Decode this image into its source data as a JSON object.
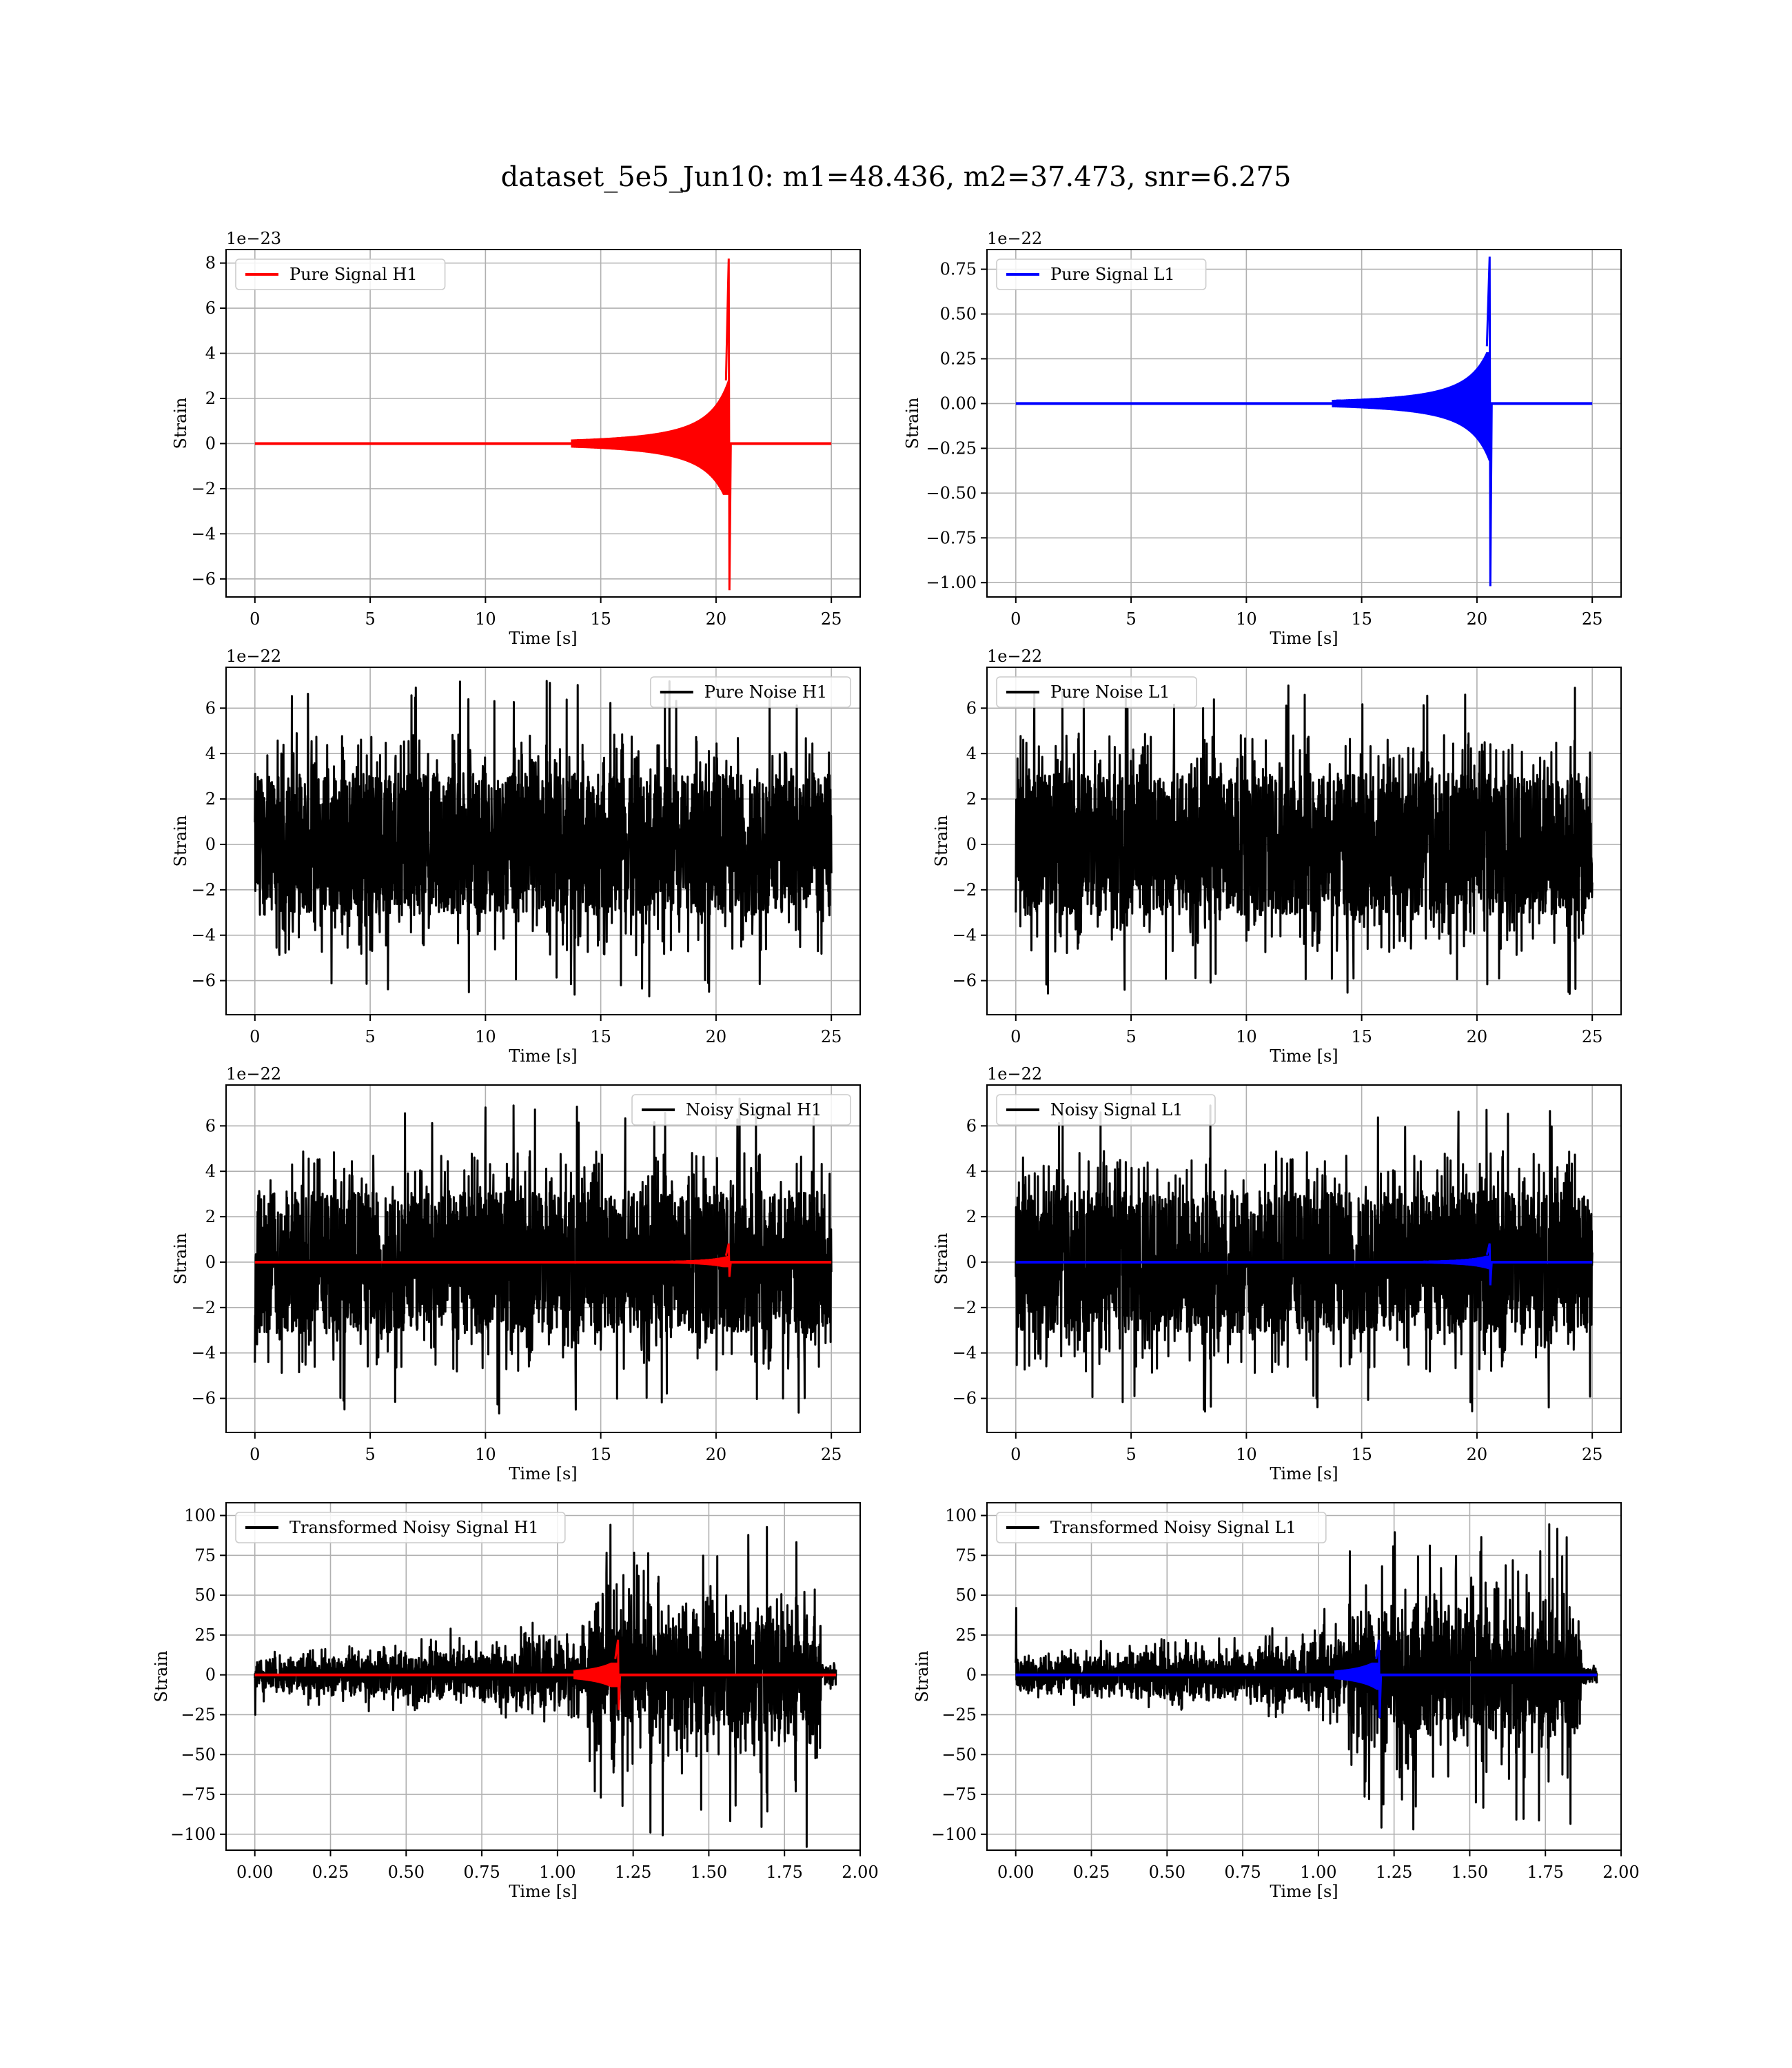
{
  "figure": {
    "suptitle": "dataset_5e5_Jun10: m1=48.436, m2=37.473, snr=6.275"
  },
  "colors": {
    "h1_signal": "#ff0000",
    "l1_signal": "#0000ff",
    "noise": "#000000",
    "grid": "#b0b0b0"
  },
  "chart_data": [
    {
      "type": "line",
      "legend_entries": [
        "Pure Signal H1"
      ],
      "legend_location": "upper-left",
      "xlabel": "Time [s]",
      "ylabel": "Strain",
      "offset_label": "1e−23",
      "xlim": [
        -1.25,
        26.25
      ],
      "ylim": [
        -6.8,
        8.6
      ],
      "xticks": [
        0,
        5,
        10,
        15,
        20,
        25
      ],
      "xtick_labels": [
        "0",
        "5",
        "10",
        "15",
        "20",
        "25"
      ],
      "yticks": [
        -6,
        -4,
        -2,
        0,
        2,
        4,
        6,
        8
      ],
      "ytick_labels": [
        "−6",
        "−4",
        "−2",
        "0",
        "2",
        "4",
        "6",
        "8"
      ],
      "grid": true,
      "series": [
        {
          "kind": "chirp",
          "color": "#ff0000",
          "x_start": 0,
          "x_end": 25,
          "merger_time": 20.55,
          "peak_max": 8.2,
          "peak_min": -6.5,
          "envelope_pre_merger": 2.8
        }
      ]
    },
    {
      "type": "line",
      "legend_entries": [
        "Pure Signal L1"
      ],
      "legend_location": "upper-left",
      "xlabel": "Time [s]",
      "ylabel": "Strain",
      "offset_label": "1e−22",
      "xlim": [
        -1.25,
        26.25
      ],
      "ylim": [
        -1.08,
        0.86
      ],
      "xticks": [
        0,
        5,
        10,
        15,
        20,
        25
      ],
      "xtick_labels": [
        "0",
        "5",
        "10",
        "15",
        "20",
        "25"
      ],
      "yticks": [
        -1.0,
        -0.75,
        -0.5,
        -0.25,
        0.0,
        0.25,
        0.5,
        0.75
      ],
      "ytick_labels": [
        "−1.00",
        "−0.75",
        "−0.50",
        "−0.25",
        "0.00",
        "0.25",
        "0.50",
        "0.75"
      ],
      "grid": true,
      "series": [
        {
          "kind": "chirp",
          "color": "#0000ff",
          "x_start": 0,
          "x_end": 25,
          "merger_time": 20.55,
          "peak_max": 0.82,
          "peak_min": -1.02,
          "envelope_pre_merger": 0.32
        }
      ]
    },
    {
      "type": "line",
      "legend_entries": [
        "Pure Noise H1"
      ],
      "legend_location": "upper-right",
      "xlabel": "Time [s]",
      "ylabel": "Strain",
      "offset_label": "1e−22",
      "xlim": [
        -1.25,
        26.25
      ],
      "ylim": [
        -7.5,
        7.8
      ],
      "xticks": [
        0,
        5,
        10,
        15,
        20,
        25
      ],
      "xtick_labels": [
        "0",
        "5",
        "10",
        "15",
        "20",
        "25"
      ],
      "yticks": [
        -6,
        -4,
        -2,
        0,
        2,
        4,
        6
      ],
      "ytick_labels": [
        "−6",
        "−4",
        "−2",
        "0",
        "2",
        "4",
        "6"
      ],
      "grid": true,
      "series": [
        {
          "kind": "noise",
          "color": "#000000",
          "x_start": 0,
          "x_end": 25,
          "band": 3.3,
          "peak_max": 7.2,
          "peak_min": -6.8
        }
      ]
    },
    {
      "type": "line",
      "legend_entries": [
        "Pure Noise L1"
      ],
      "legend_location": "upper-left",
      "xlabel": "Time [s]",
      "ylabel": "Strain",
      "offset_label": "1e−22",
      "xlim": [
        -1.25,
        26.25
      ],
      "ylim": [
        -7.5,
        7.8
      ],
      "xticks": [
        0,
        5,
        10,
        15,
        20,
        25
      ],
      "xtick_labels": [
        "0",
        "5",
        "10",
        "15",
        "20",
        "25"
      ],
      "yticks": [
        -6,
        -4,
        -2,
        0,
        2,
        4,
        6
      ],
      "ytick_labels": [
        "−6",
        "−4",
        "−2",
        "0",
        "2",
        "4",
        "6"
      ],
      "grid": true,
      "series": [
        {
          "kind": "noise",
          "color": "#000000",
          "x_start": 0,
          "x_end": 25,
          "band": 3.3,
          "peak_max": 7.0,
          "peak_min": -6.7
        }
      ]
    },
    {
      "type": "line",
      "legend_entries": [
        "Noisy Signal H1"
      ],
      "legend_location": "upper-right",
      "xlabel": "Time [s]",
      "ylabel": "Strain",
      "offset_label": "1e−22",
      "xlim": [
        -1.25,
        26.25
      ],
      "ylim": [
        -7.5,
        7.8
      ],
      "xticks": [
        0,
        5,
        10,
        15,
        20,
        25
      ],
      "xtick_labels": [
        "0",
        "5",
        "10",
        "15",
        "20",
        "25"
      ],
      "yticks": [
        -6,
        -4,
        -2,
        0,
        2,
        4,
        6
      ],
      "ytick_labels": [
        "−6",
        "−4",
        "−2",
        "0",
        "2",
        "4",
        "6"
      ],
      "grid": true,
      "series": [
        {
          "kind": "noise",
          "color": "#000000",
          "x_start": 0,
          "x_end": 25,
          "band": 3.3,
          "peak_max": 7.2,
          "peak_min": -6.8
        },
        {
          "kind": "chirp",
          "color": "#ff0000",
          "x_start": 0,
          "x_end": 25,
          "merger_time": 20.55,
          "peak_max": 0.82,
          "peak_min": -0.65,
          "envelope_pre_merger": 0.28
        }
      ]
    },
    {
      "type": "line",
      "legend_entries": [
        "Noisy Signal L1"
      ],
      "legend_location": "upper-left",
      "xlabel": "Time [s]",
      "ylabel": "Strain",
      "offset_label": "1e−22",
      "xlim": [
        -1.25,
        26.25
      ],
      "ylim": [
        -7.5,
        7.8
      ],
      "xticks": [
        0,
        5,
        10,
        15,
        20,
        25
      ],
      "xtick_labels": [
        "0",
        "5",
        "10",
        "15",
        "20",
        "25"
      ],
      "yticks": [
        -6,
        -4,
        -2,
        0,
        2,
        4,
        6
      ],
      "ytick_labels": [
        "−6",
        "−4",
        "−2",
        "0",
        "2",
        "4",
        "6"
      ],
      "grid": true,
      "series": [
        {
          "kind": "noise",
          "color": "#000000",
          "x_start": 0,
          "x_end": 25,
          "band": 3.3,
          "peak_max": 7.0,
          "peak_min": -6.7
        },
        {
          "kind": "chirp",
          "color": "#0000ff",
          "x_start": 0,
          "x_end": 25,
          "merger_time": 20.55,
          "peak_max": 0.82,
          "peak_min": -1.02,
          "envelope_pre_merger": 0.32
        }
      ]
    },
    {
      "type": "line",
      "legend_entries": [
        "Transformed Noisy Signal H1"
      ],
      "legend_location": "upper-left",
      "xlabel": "Time [s]",
      "ylabel": "Strain",
      "offset_label": "",
      "xlim": [
        -0.095,
        2.0
      ],
      "ylim": [
        -110,
        108
      ],
      "xticks": [
        0.0,
        0.25,
        0.5,
        0.75,
        1.0,
        1.25,
        1.5,
        1.75,
        2.0
      ],
      "xtick_labels": [
        "0.00",
        "0.25",
        "0.50",
        "0.75",
        "1.00",
        "1.25",
        "1.50",
        "1.75",
        "2.00"
      ],
      "yticks": [
        -100,
        -75,
        -50,
        -25,
        0,
        25,
        50,
        75,
        100
      ],
      "ytick_labels": [
        "−100",
        "−75",
        "−50",
        "−25",
        "0",
        "25",
        "50",
        "75",
        "100"
      ],
      "grid": true,
      "series": [
        {
          "kind": "whitened",
          "color": "#000000",
          "x_start": 0,
          "x_end": 1.92,
          "cutoff_time": 1.87,
          "rise_time": 1.1,
          "peak_max": 97,
          "peak_min": -101,
          "start_spike": -25
        },
        {
          "kind": "chirp",
          "color": "#ff0000",
          "x_start": 0,
          "x_end": 1.92,
          "merger_time": 1.2,
          "peak_max": 22,
          "peak_min": -22,
          "envelope_pre_merger": 10
        }
      ]
    },
    {
      "type": "line",
      "legend_entries": [
        "Transformed Noisy Signal L1"
      ],
      "legend_location": "upper-left",
      "xlabel": "Time [s]",
      "ylabel": "Strain",
      "offset_label": "",
      "xlim": [
        -0.095,
        2.0
      ],
      "ylim": [
        -110,
        108
      ],
      "xticks": [
        0.0,
        0.25,
        0.5,
        0.75,
        1.0,
        1.25,
        1.5,
        1.75,
        2.0
      ],
      "xtick_labels": [
        "0.00",
        "0.25",
        "0.50",
        "0.75",
        "1.00",
        "1.25",
        "1.50",
        "1.75",
        "2.00"
      ],
      "yticks": [
        -100,
        -75,
        -50,
        -25,
        0,
        25,
        50,
        75,
        100
      ],
      "ytick_labels": [
        "−100",
        "−75",
        "−50",
        "−25",
        "0",
        "25",
        "50",
        "75",
        "100"
      ],
      "grid": true,
      "series": [
        {
          "kind": "whitened",
          "color": "#000000",
          "x_start": 0,
          "x_end": 1.92,
          "cutoff_time": 1.87,
          "rise_time": 1.1,
          "peak_max": 105,
          "peak_min": -98,
          "start_spike": 42
        },
        {
          "kind": "chirp",
          "color": "#0000ff",
          "x_start": 0,
          "x_end": 1.92,
          "merger_time": 1.2,
          "peak_max": 22,
          "peak_min": -27,
          "envelope_pre_merger": 10
        }
      ]
    }
  ]
}
